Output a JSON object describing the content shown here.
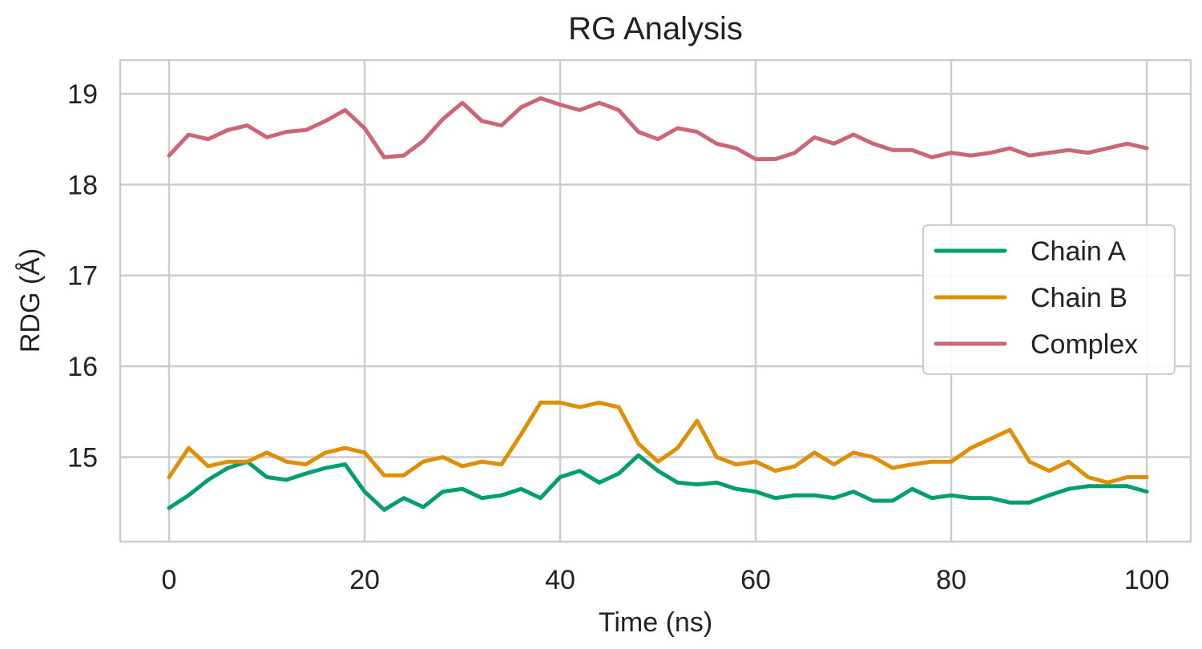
{
  "chart_data": {
    "type": "line",
    "title": "RG Analysis",
    "xlabel": "Time (ns)",
    "ylabel": "RDG (Å)",
    "xlim": [
      -5,
      104.5
    ],
    "ylim": [
      14.07,
      19.37
    ],
    "xticks": [
      "0",
      "20",
      "40",
      "60",
      "80",
      "100"
    ],
    "yticks": [
      "15",
      "16",
      "17",
      "18",
      "19"
    ],
    "grid": true,
    "legend": "center-right",
    "x": [
      0,
      2,
      4,
      6,
      8,
      10,
      12,
      14,
      16,
      18,
      20,
      22,
      24,
      26,
      28,
      30,
      32,
      34,
      36,
      38,
      40,
      42,
      44,
      46,
      48,
      50,
      52,
      54,
      56,
      58,
      60,
      62,
      64,
      66,
      68,
      70,
      72,
      74,
      76,
      78,
      80,
      82,
      84,
      86,
      88,
      90,
      92,
      94,
      96,
      98,
      100
    ],
    "series": [
      {
        "name": "Chain A",
        "color": "#029E73",
        "values": [
          14.44,
          14.58,
          14.75,
          14.88,
          14.95,
          14.78,
          14.75,
          14.82,
          14.88,
          14.92,
          14.62,
          14.42,
          14.55,
          14.45,
          14.62,
          14.65,
          14.55,
          14.58,
          14.65,
          14.55,
          14.78,
          14.85,
          14.72,
          14.82,
          15.02,
          14.85,
          14.72,
          14.7,
          14.72,
          14.65,
          14.62,
          14.55,
          14.58,
          14.58,
          14.55,
          14.62,
          14.52,
          14.52,
          14.65,
          14.55,
          14.58,
          14.55,
          14.55,
          14.5,
          14.5,
          14.58,
          14.65,
          14.68,
          14.68,
          14.68,
          14.62
        ]
      },
      {
        "name": "Chain B",
        "color": "#DE8F05",
        "values": [
          14.78,
          15.1,
          14.9,
          14.95,
          14.95,
          15.05,
          14.95,
          14.92,
          15.05,
          15.1,
          15.05,
          14.8,
          14.8,
          14.95,
          15.0,
          14.9,
          14.95,
          14.92,
          15.25,
          15.6,
          15.6,
          15.55,
          15.6,
          15.55,
          15.15,
          14.95,
          15.1,
          15.4,
          15.0,
          14.92,
          14.95,
          14.85,
          14.9,
          15.05,
          14.92,
          15.05,
          15.0,
          14.88,
          14.92,
          14.95,
          14.95,
          15.1,
          15.2,
          15.3,
          14.95,
          14.85,
          14.95,
          14.78,
          14.72,
          14.78,
          14.78
        ]
      },
      {
        "name": "Complex",
        "color": "#CC6677",
        "values": [
          18.32,
          18.55,
          18.5,
          18.6,
          18.65,
          18.52,
          18.58,
          18.6,
          18.7,
          18.82,
          18.62,
          18.3,
          18.32,
          18.48,
          18.72,
          18.9,
          18.7,
          18.65,
          18.85,
          18.95,
          18.88,
          18.82,
          18.9,
          18.82,
          18.58,
          18.5,
          18.62,
          18.58,
          18.45,
          18.4,
          18.28,
          18.28,
          18.35,
          18.52,
          18.45,
          18.55,
          18.45,
          18.38,
          18.38,
          18.3,
          18.35,
          18.32,
          18.35,
          18.4,
          18.32,
          18.35,
          18.38,
          18.35,
          18.4,
          18.45,
          18.4
        ]
      }
    ]
  }
}
